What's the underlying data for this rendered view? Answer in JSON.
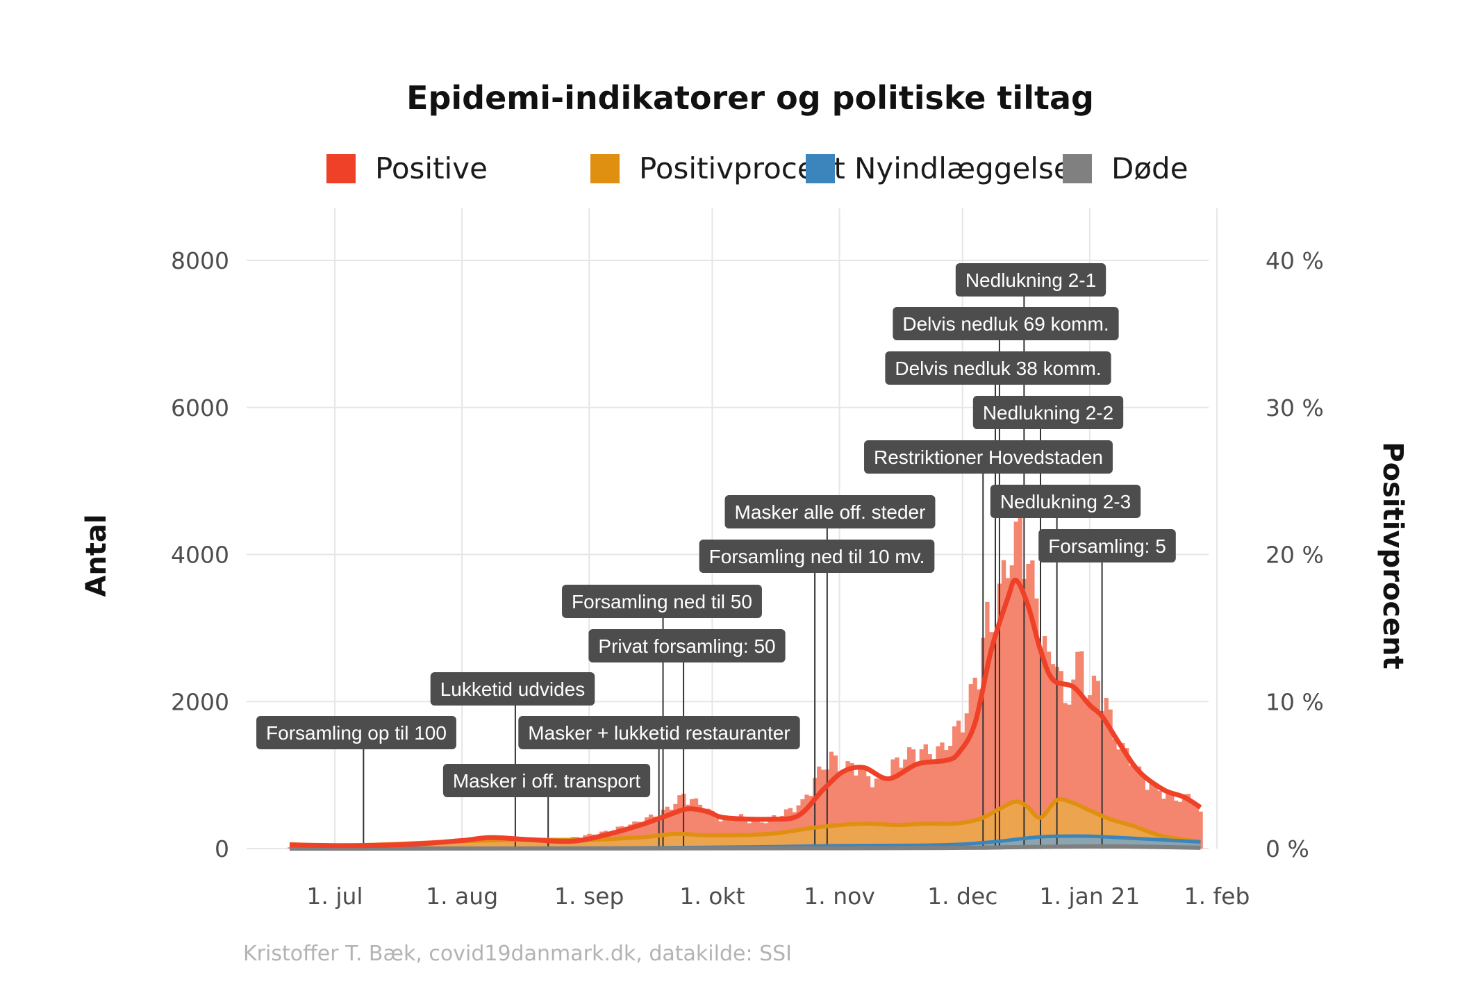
{
  "title": "Epidemi-indikatorer og politiske tiltag",
  "caption": "Kristoffer T. Bæk, covid19danmark.dk, datakilde: SSI",
  "legend": [
    {
      "label": "Positive",
      "color": "#ee4128"
    },
    {
      "label": "Positivprocent",
      "color": "#e09010"
    },
    {
      "label": "Nyindlæggelser",
      "color": "#3b84bc"
    },
    {
      "label": "Døde",
      "color": "#808080"
    }
  ],
  "chart_data": {
    "type": "bar",
    "title": "Epidemi-indikatorer og politiske tiltag",
    "xlabel": "",
    "ylabel": "Antal",
    "ylabel_right": "Positivprocent",
    "x_range": [
      "2020-06-20",
      "2021-02-01"
    ],
    "ylim": [
      0,
      8000
    ],
    "ylim_right": [
      0,
      40
    ],
    "grid": true,
    "legend_position": "top",
    "x_ticks": [
      {
        "date": "2020-07-01",
        "label": "1. jul"
      },
      {
        "date": "2020-08-01",
        "label": "1. aug"
      },
      {
        "date": "2020-09-01",
        "label": "1. sep"
      },
      {
        "date": "2020-10-01",
        "label": "1. okt"
      },
      {
        "date": "2020-11-01",
        "label": "1. nov"
      },
      {
        "date": "2020-12-01",
        "label": "1. dec"
      },
      {
        "date": "2021-01-01",
        "label": "1. jan 21"
      },
      {
        "date": "2021-02-01",
        "label": "1. feb"
      }
    ],
    "y_ticks": [
      {
        "value": 0,
        "label": "0"
      },
      {
        "value": 2000,
        "label": "2000"
      },
      {
        "value": 4000,
        "label": "4000"
      },
      {
        "value": 6000,
        "label": "6000"
      },
      {
        "value": 8000,
        "label": "8000"
      }
    ],
    "y_ticks_right": [
      {
        "value": 0,
        "label": "0 %"
      },
      {
        "value": 10,
        "label": "10 %"
      },
      {
        "value": 20,
        "label": "20 %"
      },
      {
        "value": 30,
        "label": "30 %"
      },
      {
        "value": 40,
        "label": "40 %"
      }
    ],
    "series": [
      {
        "name": "Positive",
        "style": "bars + smoothed line",
        "color": "#ee4128",
        "bar_color": "#f4866f",
        "bars": [
          [
            "2020-06-20",
            20
          ],
          [
            "2020-06-27",
            25
          ],
          [
            "2020-07-04",
            30
          ],
          [
            "2020-07-11",
            40
          ],
          [
            "2020-07-18",
            60
          ],
          [
            "2020-07-25",
            90
          ],
          [
            "2020-08-01",
            110
          ],
          [
            "2020-08-08",
            130
          ],
          [
            "2020-08-15",
            110
          ],
          [
            "2020-08-22",
            90
          ],
          [
            "2020-08-29",
            150
          ],
          [
            "2020-09-05",
            220
          ],
          [
            "2020-09-12",
            330
          ],
          [
            "2020-09-19",
            480
          ],
          [
            "2020-09-22",
            600
          ],
          [
            "2020-09-24",
            700
          ],
          [
            "2020-09-28",
            580
          ],
          [
            "2020-10-03",
            380
          ],
          [
            "2020-10-08",
            420
          ],
          [
            "2020-10-13",
            350
          ],
          [
            "2020-10-18",
            450
          ],
          [
            "2020-10-23",
            600
          ],
          [
            "2020-10-27",
            1000
          ],
          [
            "2020-10-30",
            1200
          ],
          [
            "2020-11-02",
            1050
          ],
          [
            "2020-11-05",
            1100
          ],
          [
            "2020-11-08",
            950
          ],
          [
            "2020-11-11",
            850
          ],
          [
            "2020-11-14",
            1100
          ],
          [
            "2020-11-17",
            1200
          ],
          [
            "2020-11-20",
            1300
          ],
          [
            "2020-11-23",
            1250
          ],
          [
            "2020-11-26",
            1300
          ],
          [
            "2020-11-29",
            1500
          ],
          [
            "2020-12-02",
            1800
          ],
          [
            "2020-12-04",
            2200
          ],
          [
            "2020-12-06",
            2700
          ],
          [
            "2020-12-07",
            3000
          ],
          [
            "2020-12-08",
            2900
          ],
          [
            "2020-12-10",
            3300
          ],
          [
            "2020-12-12",
            3800
          ],
          [
            "2020-12-14",
            4000
          ],
          [
            "2020-12-15",
            4350
          ],
          [
            "2020-12-16",
            4000
          ],
          [
            "2020-12-18",
            3500
          ],
          [
            "2020-12-20",
            3000
          ],
          [
            "2020-12-22",
            2400
          ],
          [
            "2020-12-24",
            2600
          ],
          [
            "2020-12-26",
            1800
          ],
          [
            "2020-12-28",
            2300
          ],
          [
            "2020-12-30",
            2500
          ],
          [
            "2021-01-01",
            2000
          ],
          [
            "2021-01-03",
            2200
          ],
          [
            "2021-01-05",
            1900
          ],
          [
            "2021-01-07",
            1500
          ],
          [
            "2021-01-09",
            1300
          ],
          [
            "2021-01-11",
            1200
          ],
          [
            "2021-01-13",
            1000
          ],
          [
            "2021-01-15",
            900
          ],
          [
            "2021-01-17",
            800
          ],
          [
            "2021-01-20",
            700
          ],
          [
            "2021-01-23",
            650
          ],
          [
            "2021-01-26",
            700
          ],
          [
            "2021-01-28",
            450
          ]
        ],
        "trend": [
          [
            "2020-06-20",
            50
          ],
          [
            "2020-07-05",
            40
          ],
          [
            "2020-07-20",
            60
          ],
          [
            "2020-08-01",
            110
          ],
          [
            "2020-08-08",
            150
          ],
          [
            "2020-08-18",
            120
          ],
          [
            "2020-08-28",
            100
          ],
          [
            "2020-09-06",
            200
          ],
          [
            "2020-09-14",
            330
          ],
          [
            "2020-09-20",
            450
          ],
          [
            "2020-09-25",
            540
          ],
          [
            "2020-09-30",
            500
          ],
          [
            "2020-10-04",
            420
          ],
          [
            "2020-10-15",
            400
          ],
          [
            "2020-10-22",
            450
          ],
          [
            "2020-10-28",
            800
          ],
          [
            "2020-11-02",
            1050
          ],
          [
            "2020-11-07",
            1100
          ],
          [
            "2020-11-13",
            950
          ],
          [
            "2020-11-20",
            1150
          ],
          [
            "2020-11-27",
            1200
          ],
          [
            "2020-11-30",
            1300
          ],
          [
            "2020-12-04",
            1700
          ],
          [
            "2020-12-08",
            2700
          ],
          [
            "2020-12-12",
            3400
          ],
          [
            "2020-12-14",
            3650
          ],
          [
            "2020-12-17",
            3300
          ],
          [
            "2020-12-20",
            2700
          ],
          [
            "2020-12-23",
            2300
          ],
          [
            "2020-12-28",
            2200
          ],
          [
            "2021-01-01",
            1950
          ],
          [
            "2021-01-04",
            1800
          ],
          [
            "2021-01-08",
            1450
          ],
          [
            "2021-01-13",
            1050
          ],
          [
            "2021-01-19",
            800
          ],
          [
            "2021-01-24",
            700
          ],
          [
            "2021-01-28",
            560
          ]
        ]
      },
      {
        "name": "Positivprocent",
        "style": "area + smoothed line (right axis, %)",
        "color": "#e09010",
        "values": [
          [
            "2020-06-20",
            0.3
          ],
          [
            "2020-07-01",
            0.2
          ],
          [
            "2020-07-15",
            0.3
          ],
          [
            "2020-08-01",
            0.5
          ],
          [
            "2020-08-15",
            0.6
          ],
          [
            "2020-09-01",
            0.6
          ],
          [
            "2020-09-15",
            0.8
          ],
          [
            "2020-09-22",
            1.0
          ],
          [
            "2020-10-01",
            0.9
          ],
          [
            "2020-10-15",
            1.0
          ],
          [
            "2020-10-25",
            1.4
          ],
          [
            "2020-11-01",
            1.6
          ],
          [
            "2020-11-08",
            1.7
          ],
          [
            "2020-11-15",
            1.6
          ],
          [
            "2020-11-22",
            1.7
          ],
          [
            "2020-11-29",
            1.7
          ],
          [
            "2020-12-05",
            2.0
          ],
          [
            "2020-12-10",
            2.7
          ],
          [
            "2020-12-14",
            3.2
          ],
          [
            "2020-12-17",
            2.8
          ],
          [
            "2020-12-20",
            2.1
          ],
          [
            "2020-12-24",
            3.3
          ],
          [
            "2020-12-28",
            3.1
          ],
          [
            "2021-01-01",
            2.6
          ],
          [
            "2021-01-06",
            2.0
          ],
          [
            "2021-01-12",
            1.5
          ],
          [
            "2021-01-18",
            0.9
          ],
          [
            "2021-01-24",
            0.6
          ],
          [
            "2021-01-28",
            0.5
          ]
        ]
      },
      {
        "name": "Nyindlæggelser",
        "style": "area + line",
        "color": "#3b84bc",
        "values": [
          [
            "2020-06-20",
            5
          ],
          [
            "2020-08-15",
            5
          ],
          [
            "2020-09-15",
            10
          ],
          [
            "2020-10-15",
            25
          ],
          [
            "2020-11-01",
            40
          ],
          [
            "2020-11-20",
            45
          ],
          [
            "2020-12-01",
            60
          ],
          [
            "2020-12-10",
            100
          ],
          [
            "2020-12-20",
            160
          ],
          [
            "2020-12-30",
            170
          ],
          [
            "2021-01-05",
            160
          ],
          [
            "2021-01-15",
            130
          ],
          [
            "2021-01-28",
            90
          ]
        ]
      },
      {
        "name": "Døde",
        "style": "line",
        "color": "#808080",
        "values": [
          [
            "2020-06-20",
            0
          ],
          [
            "2020-11-01",
            5
          ],
          [
            "2020-12-01",
            10
          ],
          [
            "2020-12-15",
            20
          ],
          [
            "2021-01-01",
            30
          ],
          [
            "2021-01-15",
            25
          ],
          [
            "2021-01-28",
            10
          ]
        ]
      }
    ],
    "annotations": [
      {
        "label": "Forsamling op til 100",
        "date": "2020-07-08"
      },
      {
        "label": "Masker i off. transport",
        "date": "2020-08-22"
      },
      {
        "label": "Lukketid udvides",
        "date": "2020-08-14"
      },
      {
        "label": "Masker + lukketid restauranter",
        "date": "2020-09-18"
      },
      {
        "label": "Privat forsamling: 50",
        "date": "2020-09-24"
      },
      {
        "label": "Forsamling ned til 50",
        "date": "2020-09-19"
      },
      {
        "label": "Forsamling ned til 10 mv.",
        "date": "2020-10-26"
      },
      {
        "label": "Masker alle off. steder",
        "date": "2020-10-29"
      },
      {
        "label": "Forsamling: 5",
        "date": "2021-01-04"
      },
      {
        "label": "Nedlukning 2-3",
        "date": "2020-12-24"
      },
      {
        "label": "Restriktioner Hovedstaden",
        "date": "2020-12-06"
      },
      {
        "label": "Nedlukning 2-2",
        "date": "2020-12-20"
      },
      {
        "label": "Delvis nedluk 38 komm.",
        "date": "2020-12-09"
      },
      {
        "label": "Delvis nedluk 69 komm.",
        "date": "2020-12-10"
      },
      {
        "label": "Nedlukning 2-1",
        "date": "2020-12-16"
      }
    ]
  }
}
